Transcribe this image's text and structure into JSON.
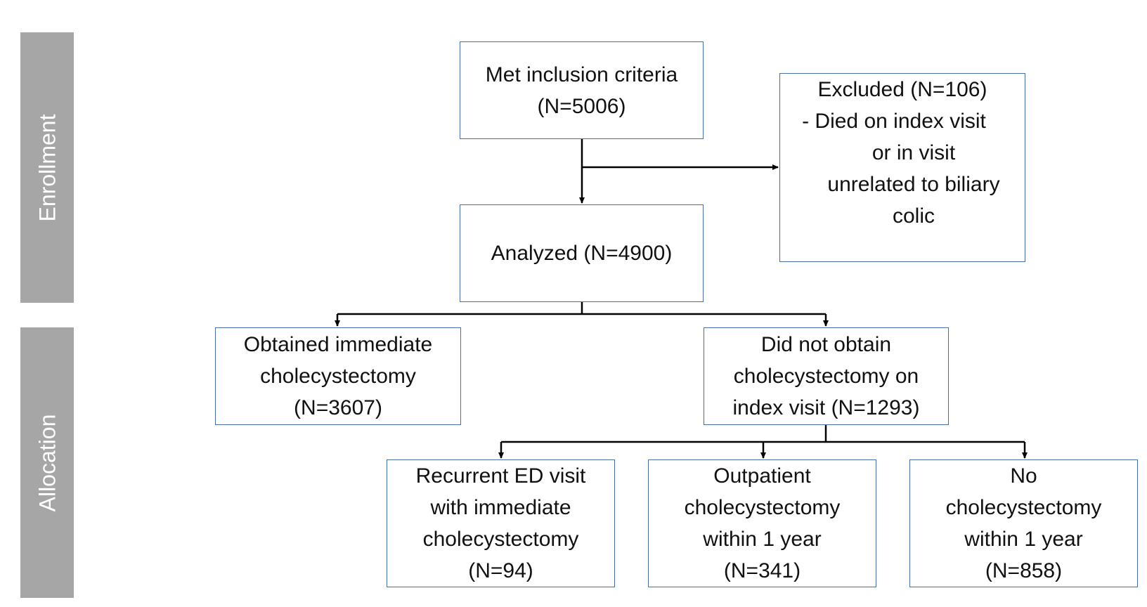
{
  "sidebar": {
    "enrollment": "Enrollment",
    "allocation": "Allocation"
  },
  "boxes": {
    "inclusion": {
      "lines": [
        "Met inclusion criteria",
        "(N=5006)"
      ]
    },
    "excluded": {
      "lines": [
        "Excluded (N=106)",
        "-  Died on index visit",
        "or in visit",
        "unrelated to biliary",
        "colic"
      ]
    },
    "analyzed": {
      "lines": [
        "Analyzed (N=4900)"
      ]
    },
    "immediate": {
      "lines": [
        "Obtained immediate",
        "cholecystectomy",
        "(N=3607)"
      ]
    },
    "not_obtained": {
      "lines": [
        "Did not obtain",
        "cholecystectomy on",
        "index visit (N=1293)"
      ]
    },
    "recurrent": {
      "lines": [
        "Recurrent ED visit",
        "with immediate",
        "cholecystectomy",
        "(N=94)"
      ]
    },
    "outpatient": {
      "lines": [
        "Outpatient",
        "cholecystectomy",
        "within 1 year",
        "(N=341)"
      ]
    },
    "none": {
      "lines": [
        "No",
        "cholecystectomy",
        "within 1 year",
        "(N=858)"
      ]
    }
  },
  "colors": {
    "box_border": "#4a6fa5",
    "sidebar_fill": "#a6a6a6",
    "arrow": "#000000"
  }
}
